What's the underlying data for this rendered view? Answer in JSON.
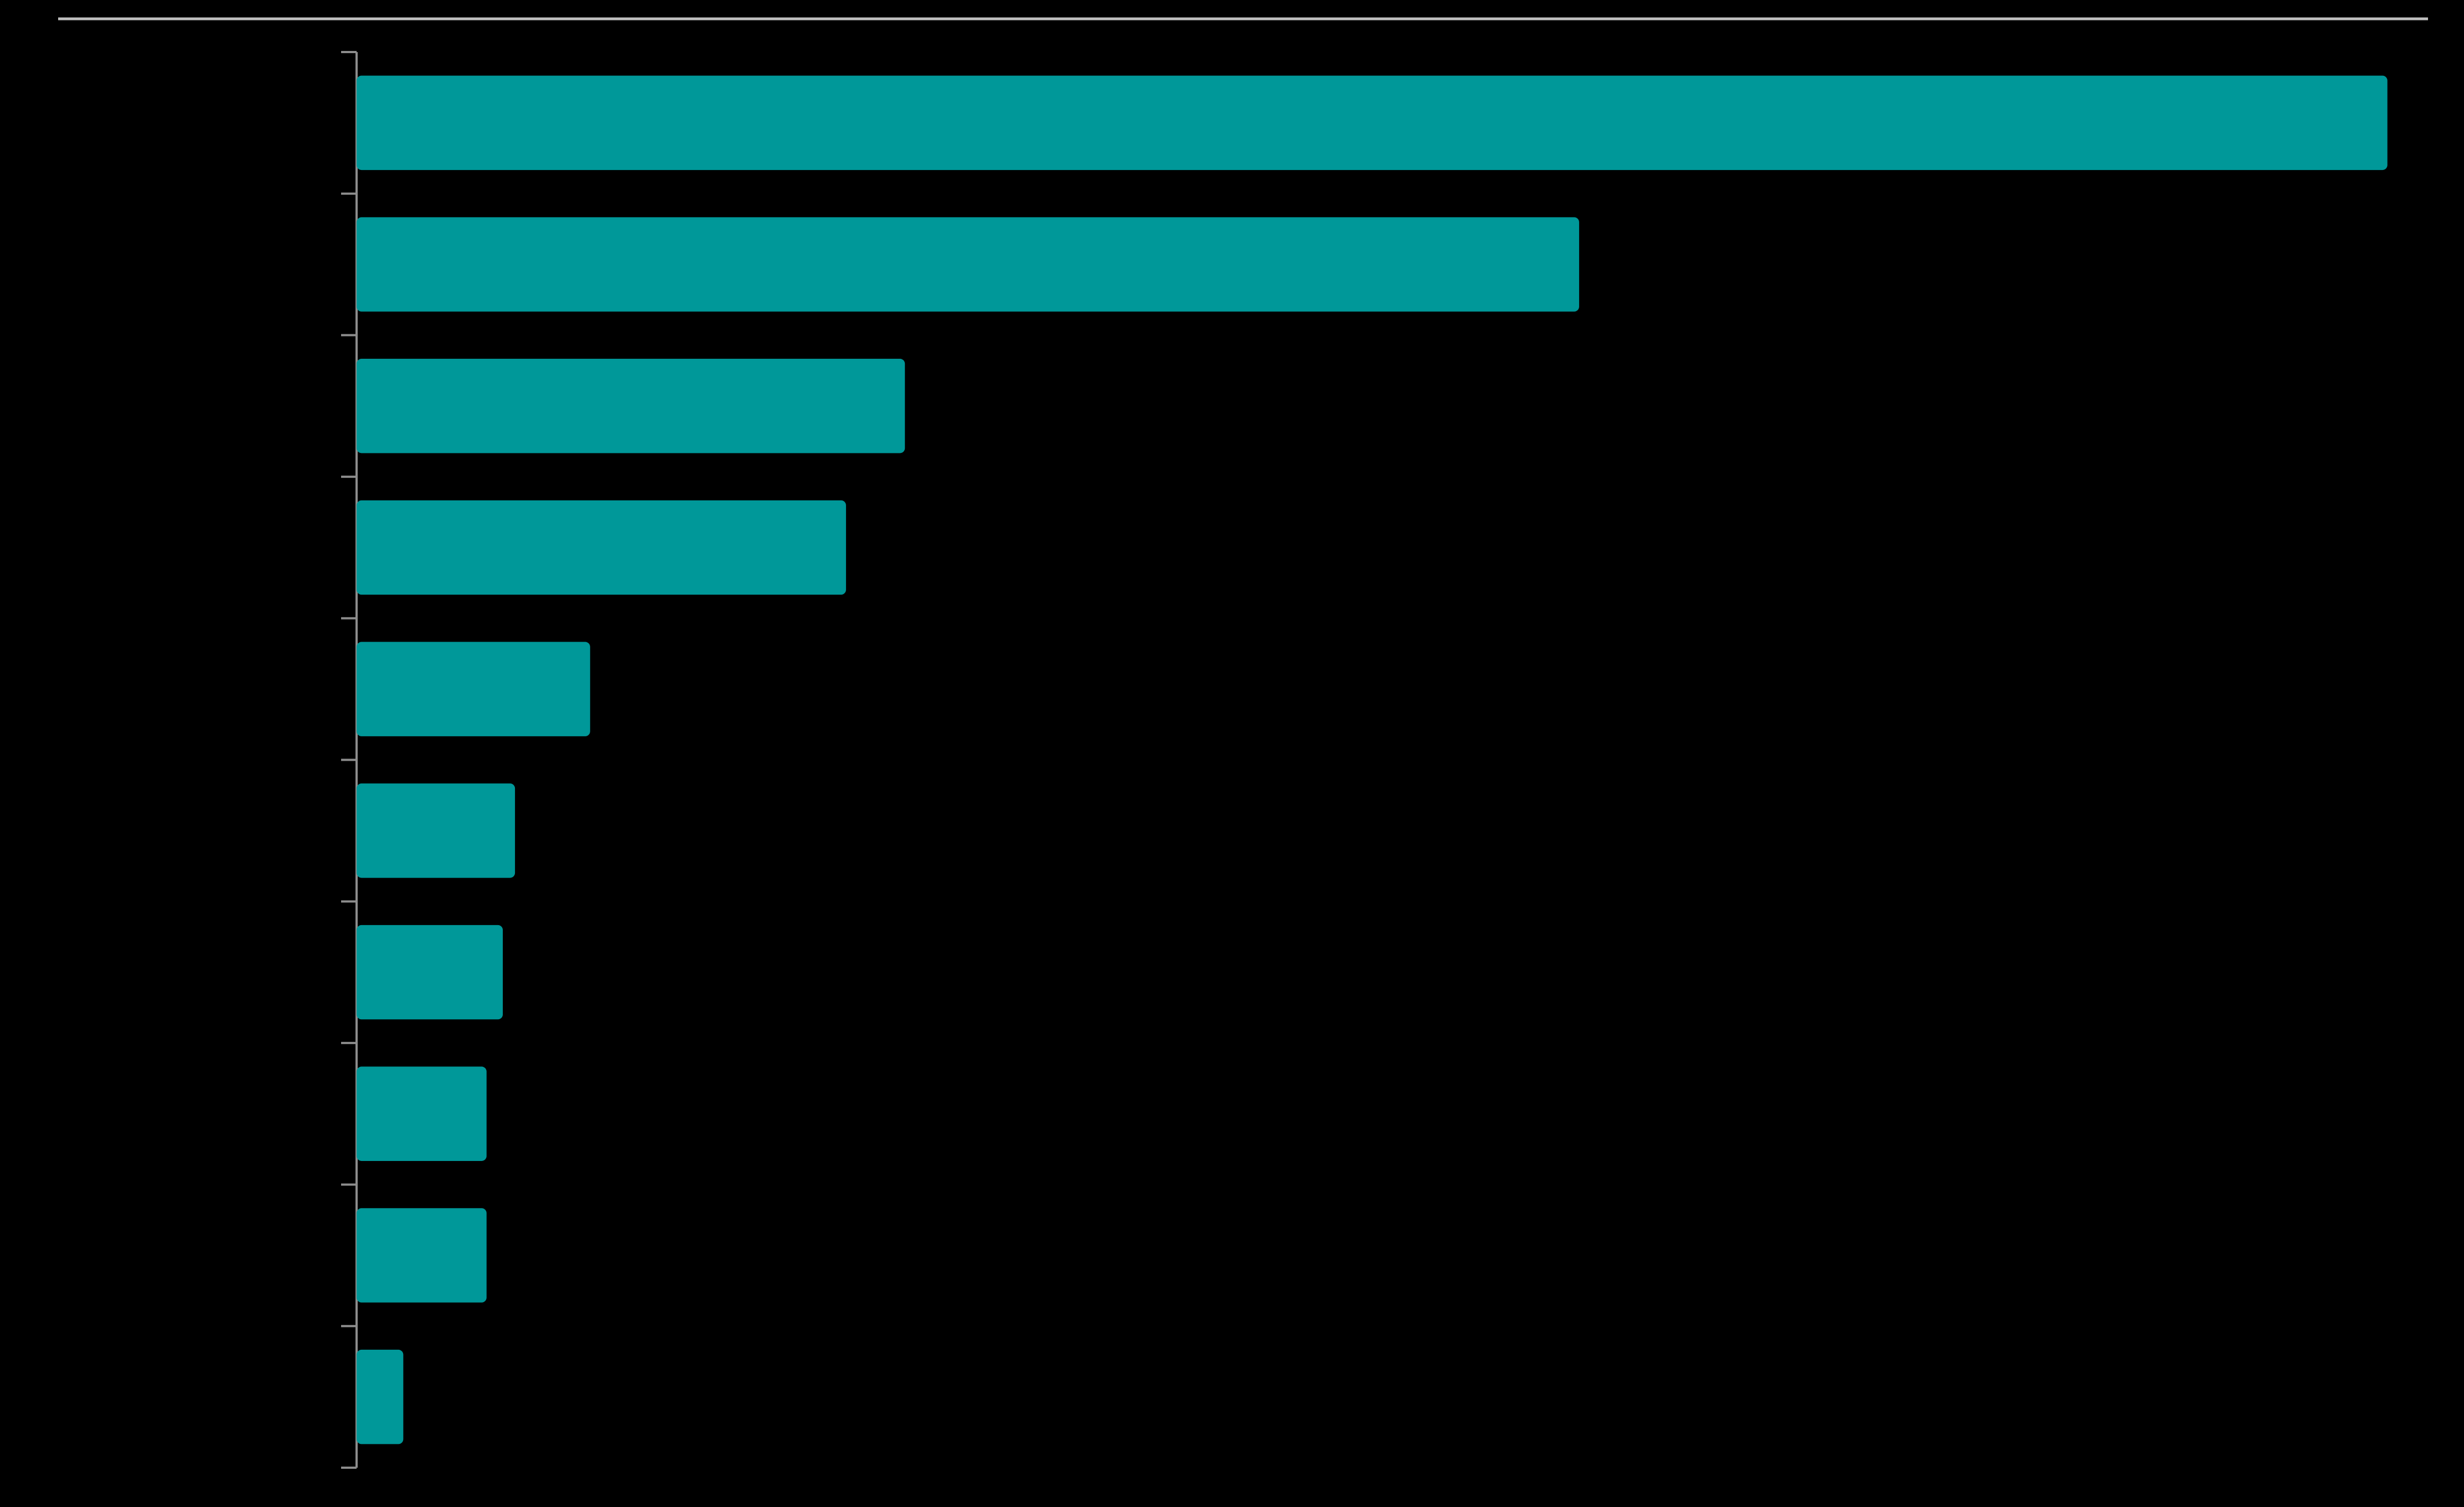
{
  "chart_data": {
    "type": "barh",
    "categories": [
      null,
      null,
      null,
      null,
      null,
      null,
      null,
      null,
      null,
      null
    ],
    "values": [
      100,
      60.2,
      27.0,
      24.1,
      11.5,
      7.8,
      7.2,
      6.4,
      6.4,
      2.3
    ],
    "color": "#009899",
    "xlim": [
      0,
      102
    ]
  }
}
